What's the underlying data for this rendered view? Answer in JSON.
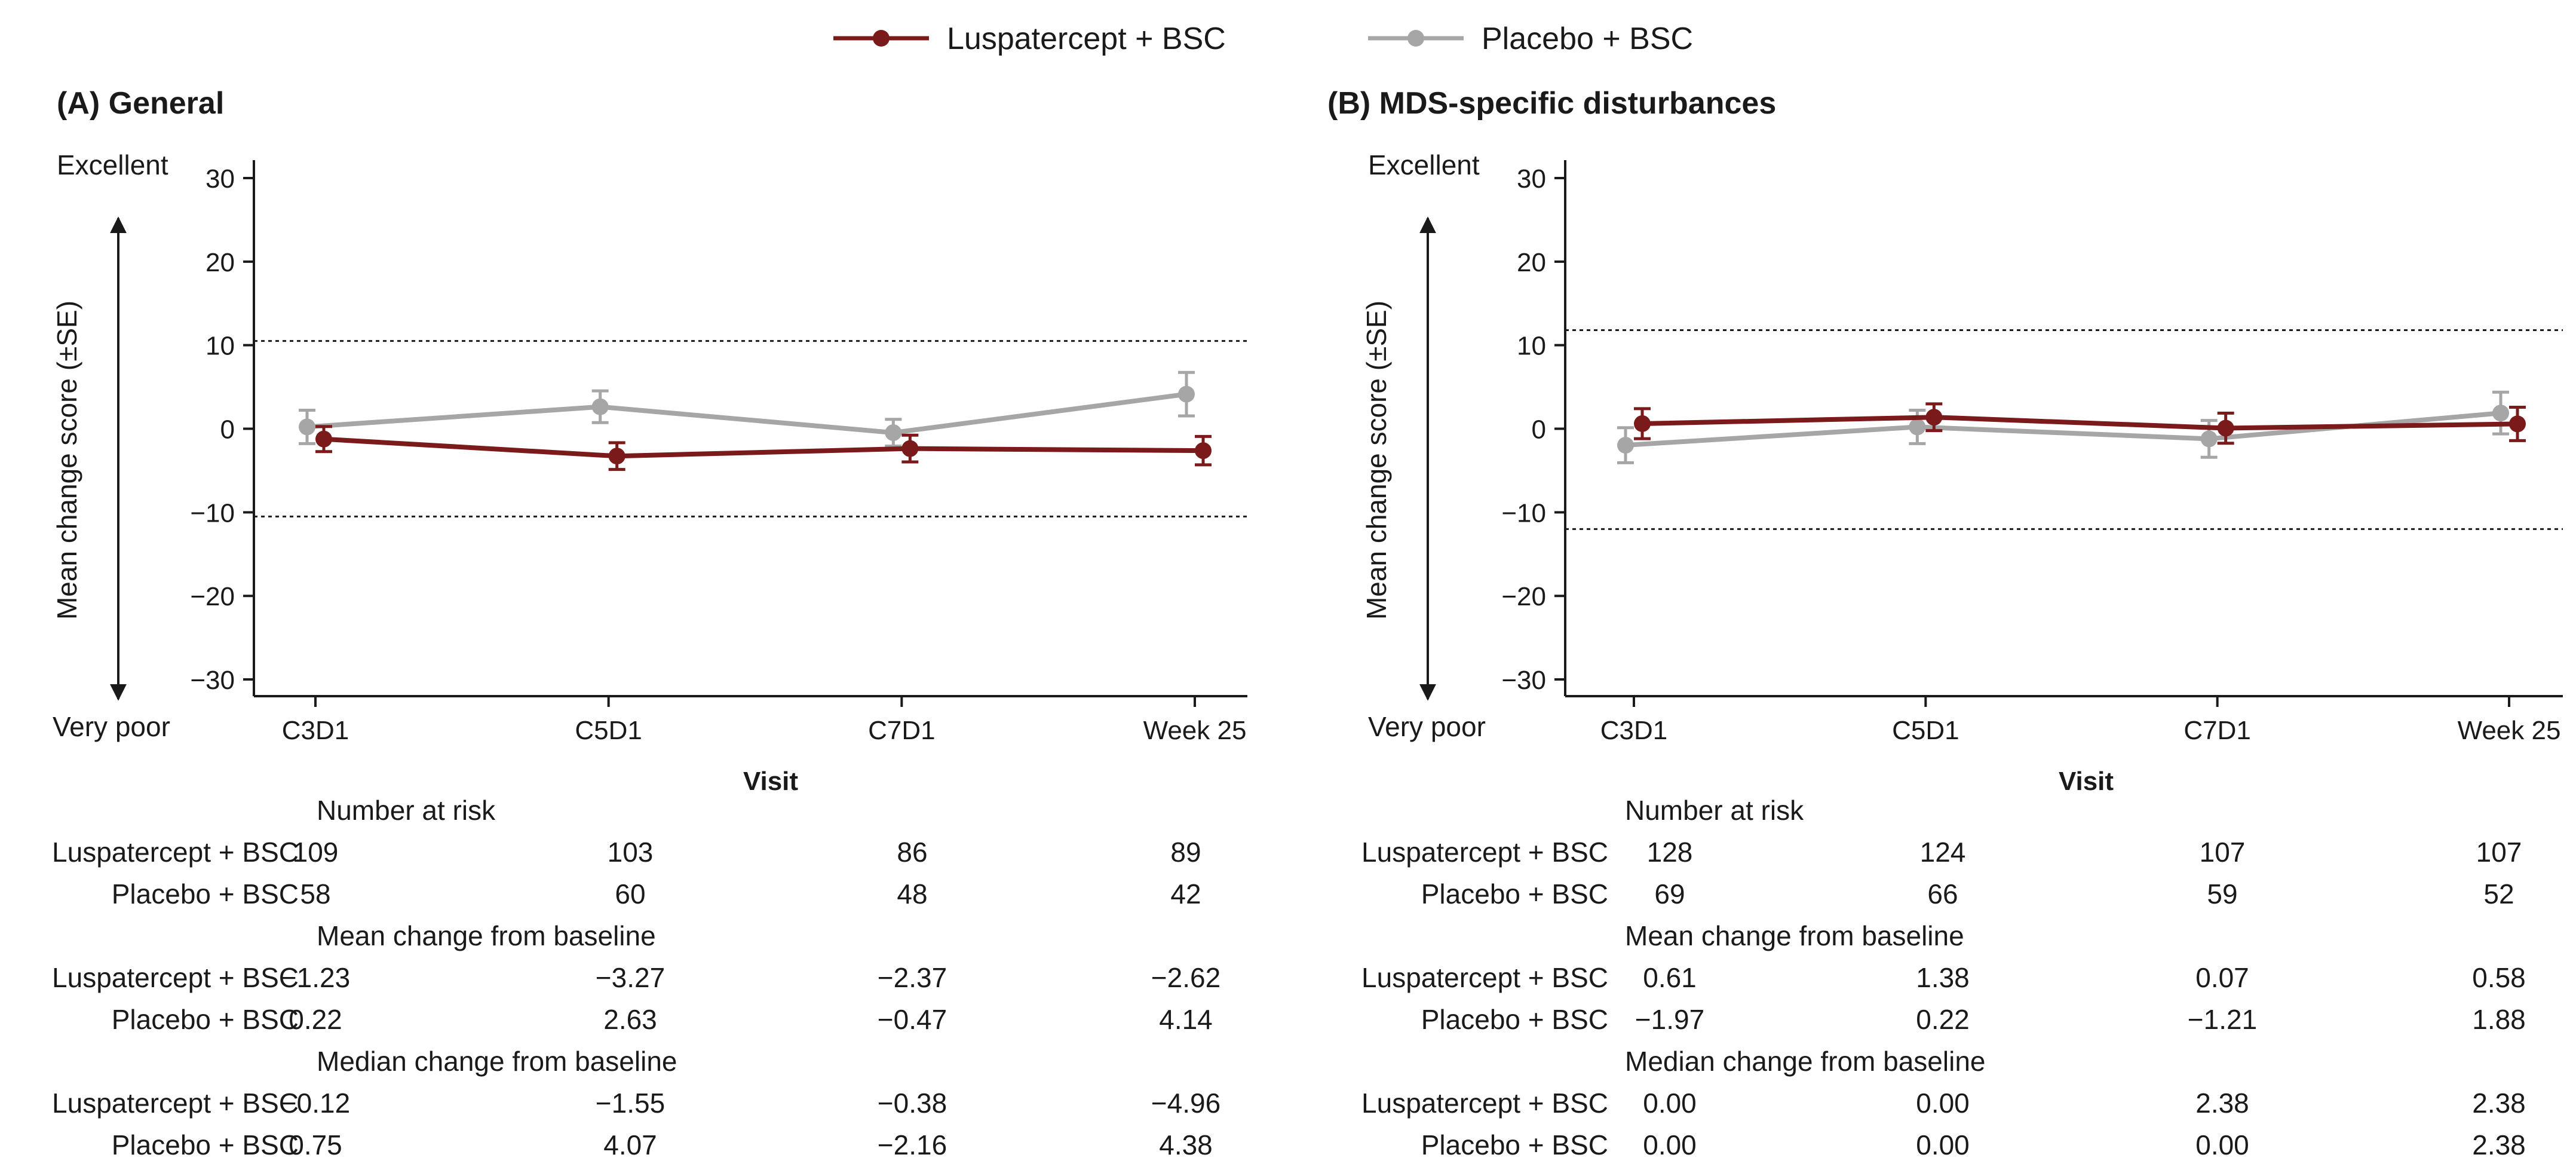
{
  "legend": {
    "items": [
      {
        "label": "Luspatercept + BSC",
        "color": "#7b1a1a"
      },
      {
        "label": "Placebo + BSC",
        "color": "#a6a6a6"
      }
    ]
  },
  "chart_data": [
    {
      "type": "line",
      "title": "(A) General",
      "xlabel": "Visit",
      "ylabel": "Mean change score (±SE)",
      "top_annotation": "Excellent",
      "bottom_annotation": "Very poor",
      "categories": [
        "C3D1",
        "C5D1",
        "C7D1",
        "Week 25"
      ],
      "ylim": [
        -32,
        30
      ],
      "yticks": [
        30,
        20,
        10,
        0,
        -10,
        -20,
        -30
      ],
      "ytick_labels": [
        "30",
        "20",
        "10",
        "0",
        "−10",
        "−20",
        "−30"
      ],
      "reference_lines": [
        10.5,
        -10.5
      ],
      "series": [
        {
          "name": "Luspatercept + BSC",
          "color": "#7b1a1a",
          "values": [
            -1.23,
            -3.27,
            -2.37,
            -2.62
          ],
          "se": [
            1.5,
            1.6,
            1.6,
            1.7
          ]
        },
        {
          "name": "Placebo + BSC",
          "color": "#a6a6a6",
          "values": [
            0.22,
            2.63,
            -0.47,
            4.14
          ],
          "se": [
            2.0,
            1.9,
            1.6,
            2.6
          ]
        }
      ],
      "table": {
        "sections": [
          {
            "title": "Number at risk",
            "rows": [
              {
                "label": "Luspatercept + BSC",
                "values": [
                  "109",
                  "103",
                  "86",
                  "89"
                ]
              },
              {
                "label": "Placebo + BSC",
                "values": [
                  "58",
                  "60",
                  "48",
                  "42"
                ]
              }
            ]
          },
          {
            "title": "Mean change from baseline",
            "rows": [
              {
                "label": "Luspatercept + BSC",
                "values": [
                  "−1.23",
                  "−3.27",
                  "−2.37",
                  "−2.62"
                ]
              },
              {
                "label": "Placebo + BSC",
                "values": [
                  "0.22",
                  "2.63",
                  "−0.47",
                  "4.14"
                ]
              }
            ]
          },
          {
            "title": "Median change from baseline",
            "rows": [
              {
                "label": "Luspatercept + BSC",
                "values": [
                  "−0.12",
                  "−1.55",
                  "−0.38",
                  "−4.96"
                ]
              },
              {
                "label": "Placebo + BSC",
                "values": [
                  "0.75",
                  "4.07",
                  "−2.16",
                  "4.38"
                ]
              }
            ]
          }
        ]
      }
    },
    {
      "type": "line",
      "title": "(B) MDS-specific disturbances",
      "xlabel": "Visit",
      "ylabel": "Mean change score (±SE)",
      "top_annotation": "Excellent",
      "bottom_annotation": "Very poor",
      "categories": [
        "C3D1",
        "C5D1",
        "C7D1",
        "Week 25"
      ],
      "ylim": [
        -32,
        30
      ],
      "yticks": [
        30,
        20,
        10,
        0,
        -10,
        -20,
        -30
      ],
      "ytick_labels": [
        "30",
        "20",
        "10",
        "0",
        "−10",
        "−20",
        "−30"
      ],
      "reference_lines": [
        11.8,
        -12.0
      ],
      "series": [
        {
          "name": "Luspatercept + BSC",
          "color": "#7b1a1a",
          "values": [
            0.61,
            1.38,
            0.07,
            0.58
          ],
          "se": [
            1.8,
            1.6,
            1.8,
            2.0
          ]
        },
        {
          "name": "Placebo + BSC",
          "color": "#a6a6a6",
          "values": [
            -1.97,
            0.22,
            -1.21,
            1.88
          ],
          "se": [
            2.1,
            2.0,
            2.2,
            2.5
          ]
        }
      ],
      "table": {
        "sections": [
          {
            "title": "Number at risk",
            "rows": [
              {
                "label": "Luspatercept + BSC",
                "values": [
                  "128",
                  "124",
                  "107",
                  "107"
                ]
              },
              {
                "label": "Placebo + BSC",
                "values": [
                  "69",
                  "66",
                  "59",
                  "52"
                ]
              }
            ]
          },
          {
            "title": "Mean change from baseline",
            "rows": [
              {
                "label": "Luspatercept + BSC",
                "values": [
                  "0.61",
                  "1.38",
                  "0.07",
                  "0.58"
                ]
              },
              {
                "label": "Placebo + BSC",
                "values": [
                  "−1.97",
                  "0.22",
                  "−1.21",
                  "1.88"
                ]
              }
            ]
          },
          {
            "title": "Median change from baseline",
            "rows": [
              {
                "label": "Luspatercept + BSC",
                "values": [
                  "0.00",
                  "0.00",
                  "2.38",
                  "2.38"
                ]
              },
              {
                "label": "Placebo + BSC",
                "values": [
                  "0.00",
                  "0.00",
                  "0.00",
                  "2.38"
                ]
              }
            ]
          }
        ]
      }
    }
  ]
}
